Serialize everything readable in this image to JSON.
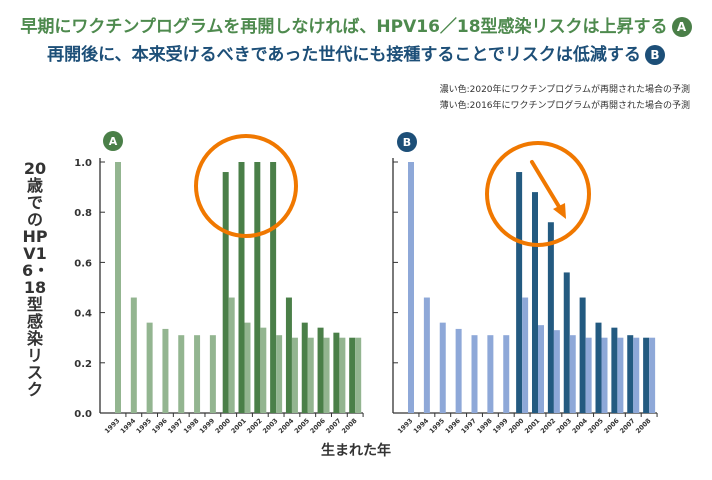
{
  "headline": {
    "line1": "早期にワクチンプログラムを再開しなければ、HPV16／18型感染リスクは上昇する",
    "line1_badge": "A",
    "line2": "再開後に、本来受けるべきであった世代にも接種することでリスクは低減する",
    "line2_badge": "B"
  },
  "legend_notes": {
    "dark": "濃い色:2020年にワクチンプログラムが再開された場合の予測",
    "light": "薄い色:2016年にワクチンプログラムが再開された場合の予測"
  },
  "colors": {
    "a_dark": "#4a7f48",
    "a_light": "#93b590",
    "b_dark": "#235a80",
    "b_light": "#8ea8d8",
    "highlight": "#f07800",
    "badge_a": "#4a7f48",
    "badge_b": "#1d4f78"
  },
  "chart_data": [
    {
      "type": "bar",
      "panel": "A",
      "xlabel": "生まれた年",
      "ylabel": "20歳でのHPV16・18型感染リスク",
      "ylim": [
        0,
        1.0
      ],
      "yticks": [
        "0.0",
        "0.2",
        "0.4",
        "0.6",
        "0.8",
        "1.0"
      ],
      "categories": [
        "1993",
        "1994",
        "1995",
        "1996",
        "1997",
        "1998",
        "1999",
        "2000",
        "2001",
        "2002",
        "2003",
        "2004",
        "2005",
        "2006",
        "2007",
        "2008"
      ],
      "series": [
        {
          "name": "濃い色:2020年にワクチンプログラムが再開された場合の予測",
          "values": [
            null,
            null,
            null,
            null,
            null,
            null,
            null,
            0.96,
            1.0,
            1.0,
            1.0,
            0.46,
            0.36,
            0.34,
            0.32,
            0.3
          ]
        },
        {
          "name": "薄い色:2016年にワクチンプログラムが再開された場合の予測",
          "values": [
            1.0,
            0.46,
            0.36,
            0.335,
            0.31,
            0.31,
            0.31,
            0.46,
            0.36,
            0.34,
            0.31,
            0.3,
            0.3,
            0.3,
            0.3,
            0.3
          ]
        }
      ],
      "annotation": "circle highlighting 2000–2003"
    },
    {
      "type": "bar",
      "panel": "B",
      "xlabel": "生まれた年",
      "ylabel": "20歳でのHPV16・18型感染リスク",
      "ylim": [
        0,
        1.0
      ],
      "categories": [
        "1993",
        "1994",
        "1995",
        "1996",
        "1997",
        "1998",
        "1999",
        "2000",
        "2001",
        "2002",
        "2003",
        "2004",
        "2005",
        "2006",
        "2007",
        "2008"
      ],
      "series": [
        {
          "name": "濃い色:2020年にワクチンプログラムが再開された場合の予測",
          "values": [
            null,
            null,
            null,
            null,
            null,
            null,
            null,
            0.96,
            0.88,
            0.76,
            0.56,
            0.46,
            0.36,
            0.34,
            0.31,
            0.3
          ]
        },
        {
          "name": "薄い色:2016年にワクチンプログラムが再開された場合の予測",
          "values": [
            1.0,
            0.46,
            0.36,
            0.335,
            0.31,
            0.31,
            0.31,
            0.46,
            0.35,
            0.33,
            0.31,
            0.3,
            0.3,
            0.3,
            0.3,
            0.3
          ]
        }
      ],
      "annotation": "circle with downward arrow over 2000–2002"
    }
  ]
}
